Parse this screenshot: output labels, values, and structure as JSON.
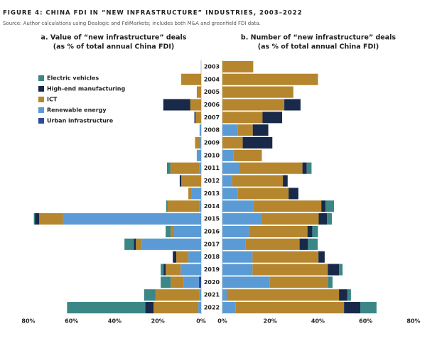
{
  "title": "FIGURE 4: CHINA FDI IN “NEW INFRASTRUCTURE” INDUSTRIES, 2003–2022",
  "source": "Source: Author calculations using Dealogic and FdiMarkets; includes both M&A and greenfield FDI data.",
  "chart_data": [
    {
      "type": "bar",
      "orientation": "horizontal",
      "stacked": true,
      "reversed": true,
      "legend": "upper left",
      "title": "a. Value of “new infrastructure” deals",
      "subtitle": "(as % of total annual China FDI)",
      "categories": [
        "2003",
        "2004",
        "2005",
        "2006",
        "2007",
        "2008",
        "2009",
        "2010",
        "2011",
        "2012",
        "2013",
        "2014",
        "2015",
        "2016",
        "2017",
        "2018",
        "2019",
        "2020",
        "2021",
        "2022"
      ],
      "xlim": [
        0,
        80
      ],
      "xticks": [
        {
          "value": 80,
          "label": "80%"
        },
        {
          "value": 60,
          "label": "60%"
        },
        {
          "value": 40,
          "label": "40%"
        },
        {
          "value": 20,
          "label": "20%"
        },
        {
          "value": 0,
          "label": "0%"
        }
      ],
      "series": [
        {
          "name": "Electric vehicles",
          "color": "#3b8686",
          "values": [
            0,
            0,
            0,
            0,
            0,
            0,
            0,
            0,
            1.6,
            0,
            0,
            0.7,
            0.5,
            2.3,
            4.3,
            0,
            1.3,
            4.6,
            5.3,
            36.2
          ]
        },
        {
          "name": "High-end manufacturing",
          "color": "#18294a",
          "values": [
            0,
            0,
            0,
            12.5,
            0.5,
            0,
            0,
            0,
            0,
            0.7,
            0,
            0,
            2,
            0,
            1,
            1.6,
            1,
            0,
            0,
            3.9
          ]
        },
        {
          "name": "ICT",
          "color": "#b5862e",
          "values": [
            0,
            9.2,
            2,
            5,
            2.6,
            0,
            2.3,
            0,
            13.5,
            9.2,
            1.6,
            14.8,
            11,
            1.6,
            2.6,
            5.6,
            6.9,
            5.9,
            20.4,
            20.7
          ]
        },
        {
          "name": "Renewable energy",
          "color": "#5b9bd5",
          "values": [
            0,
            0,
            0,
            0,
            0,
            0.7,
            0.5,
            2,
            0.7,
            0,
            4.3,
            0.7,
            64,
            12.5,
            27.6,
            5.9,
            9.5,
            7.2,
            0.7,
            1.3
          ]
        },
        {
          "name": "Urban infrastructure",
          "color": "#2c4a9a",
          "values": [
            0,
            0,
            0,
            0,
            0,
            0,
            0,
            0,
            0,
            0,
            0,
            0,
            0,
            0,
            0,
            0,
            0,
            1,
            0,
            0
          ]
        }
      ]
    },
    {
      "type": "bar",
      "orientation": "horizontal",
      "stacked": true,
      "reversed": false,
      "title": "b. Number of “new infrastructure” deals",
      "subtitle": "(as % of total annual China FDI)",
      "xlim": [
        0,
        80
      ],
      "xticks": [
        {
          "value": 0,
          "label": "0%"
        },
        {
          "value": 20,
          "label": "20%"
        },
        {
          "value": 40,
          "label": "40%"
        },
        {
          "value": 60,
          "label": "60%"
        },
        {
          "value": 80,
          "label": "80%"
        }
      ],
      "series": [
        {
          "values": [
            0,
            0,
            0,
            0,
            0,
            0,
            0,
            0,
            2,
            0,
            0,
            3.5,
            2,
            2.4,
            4.1,
            0,
            1.5,
            2,
            1.5,
            6.8
          ]
        },
        {
          "values": [
            0,
            0,
            0,
            6.8,
            8.2,
            6.5,
            12.4,
            0,
            1.8,
            2,
            4.1,
            1.8,
            3.5,
            2,
            3.5,
            2.6,
            4.7,
            0,
            3.5,
            6.8
          ]
        },
        {
          "values": [
            12.9,
            40,
            29.7,
            25.9,
            16.8,
            6.2,
            8.5,
            11.8,
            26.5,
            21.2,
            21.2,
            28.5,
            23.8,
            24.4,
            22.6,
            27.6,
            31.5,
            24.4,
            47,
            45.3
          ]
        },
        {
          "values": [
            0,
            0,
            0,
            0,
            0,
            6.5,
            0,
            4.7,
            7,
            4.1,
            6.5,
            12.9,
            16.5,
            11.2,
            9.7,
            12.6,
            12.6,
            19.7,
            1.8,
            5.6
          ]
        },
        {
          "values": [
            0,
            0,
            0,
            0,
            0,
            0,
            0,
            0,
            0,
            0,
            0,
            0,
            0,
            0,
            0,
            0,
            0,
            0,
            0,
            0
          ]
        }
      ]
    }
  ]
}
